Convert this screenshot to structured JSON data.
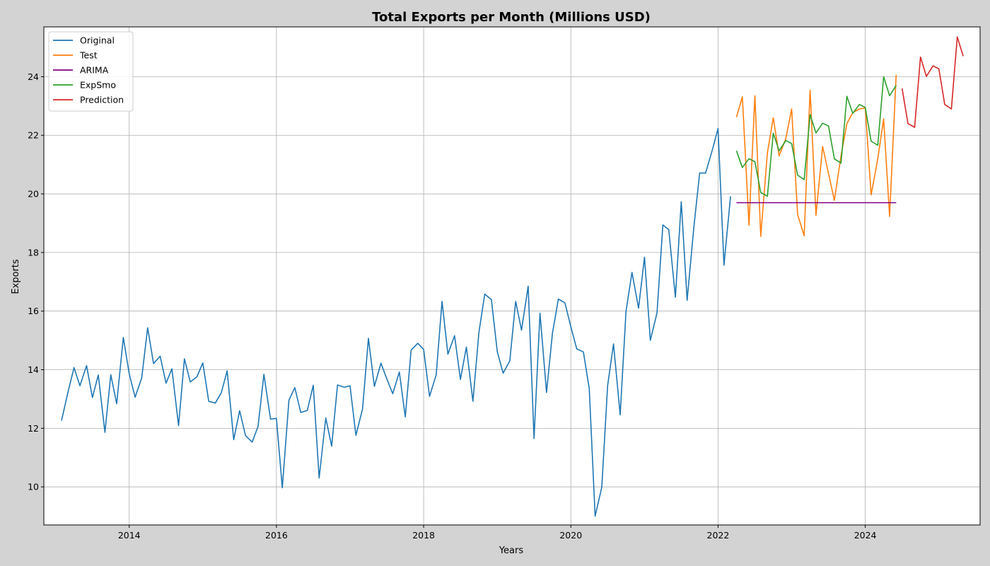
{
  "chart_data": {
    "type": "line",
    "title": "Total Exports per Month (Millions USD)",
    "xlabel": "Years",
    "ylabel": "Exports",
    "xlim": [
      2012.84,
      2025.56
    ],
    "ylim": [
      8.7,
      25.7
    ],
    "x_ticks": [
      2014,
      2016,
      2018,
      2020,
      2022,
      2024
    ],
    "x_tick_labels": [
      "2014",
      "2016",
      "2018",
      "2020",
      "2022",
      "2024"
    ],
    "y_ticks": [
      10,
      12,
      14,
      16,
      18,
      20,
      22,
      24
    ],
    "y_tick_labels": [
      "10",
      "12",
      "14",
      "16",
      "18",
      "20",
      "22",
      "24"
    ],
    "grid": true,
    "legend_position": "top-left",
    "series": [
      {
        "name": "Original",
        "color": "#1f77b4",
        "x": [
          2013.08,
          2013.17,
          2013.25,
          2013.33,
          2013.42,
          2013.5,
          2013.58,
          2013.67,
          2013.75,
          2013.83,
          2013.92,
          2014.0,
          2014.08,
          2014.17,
          2014.25,
          2014.33,
          2014.42,
          2014.5,
          2014.58,
          2014.67,
          2014.75,
          2014.83,
          2014.92,
          2015.0,
          2015.08,
          2015.17,
          2015.25,
          2015.33,
          2015.42,
          2015.5,
          2015.58,
          2015.67,
          2015.75,
          2015.83,
          2015.92,
          2016.0,
          2016.08,
          2016.17,
          2016.25,
          2016.33,
          2016.42,
          2016.5,
          2016.58,
          2016.67,
          2016.75,
          2016.83,
          2016.92,
          2017.0,
          2017.08,
          2017.17,
          2017.25,
          2017.33,
          2017.42,
          2017.5,
          2017.58,
          2017.67,
          2017.75,
          2017.83,
          2017.92,
          2018.0,
          2018.08,
          2018.17,
          2018.25,
          2018.33,
          2018.42,
          2018.5,
          2018.58,
          2018.67,
          2018.75,
          2018.83,
          2018.92,
          2019.0,
          2019.08,
          2019.17,
          2019.25,
          2019.33,
          2019.42,
          2019.5,
          2019.58,
          2019.67,
          2019.75,
          2019.83,
          2019.92,
          2020.0,
          2020.08,
          2020.17,
          2020.25,
          2020.33,
          2020.42,
          2020.5,
          2020.58,
          2020.67,
          2020.75,
          2020.83,
          2020.92,
          2021.0,
          2021.08,
          2021.17,
          2021.25,
          2021.33,
          2021.42,
          2021.5,
          2021.58,
          2021.67,
          2021.75,
          2021.83,
          2021.92,
          2022.0,
          2022.08,
          2022.17
        ],
        "y": [
          12.26,
          13.25,
          14.07,
          13.45,
          14.14,
          13.05,
          13.82,
          11.86,
          13.83,
          12.84,
          15.1,
          13.86,
          13.06,
          13.72,
          15.43,
          14.21,
          14.46,
          13.54,
          14.03,
          12.09,
          14.37,
          13.58,
          13.76,
          14.23,
          12.92,
          12.86,
          13.21,
          13.96,
          11.61,
          12.6,
          11.75,
          11.53,
          12.06,
          13.84,
          12.31,
          12.34,
          9.97,
          12.96,
          13.39,
          12.54,
          12.61,
          13.47,
          10.3,
          12.35,
          11.39,
          13.48,
          13.4,
          13.45,
          11.76,
          12.66,
          15.07,
          13.43,
          14.22,
          13.68,
          13.18,
          13.92,
          12.39,
          14.67,
          14.9,
          14.69,
          13.09,
          13.82,
          16.33,
          14.53,
          15.16,
          13.67,
          14.77,
          12.92,
          15.26,
          16.58,
          16.39,
          14.62,
          13.88,
          14.3,
          16.33,
          15.35,
          16.85,
          11.65,
          15.93,
          13.22,
          15.24,
          16.41,
          16.28,
          15.46,
          14.71,
          14.61,
          13.35,
          9.0,
          9.99,
          13.46,
          14.88,
          12.46,
          16.0,
          17.32,
          16.1,
          17.84,
          15.0,
          15.94,
          18.94,
          18.78,
          16.47,
          19.73,
          16.37,
          18.84,
          20.71,
          20.71,
          21.48,
          22.23,
          17.57,
          19.92
        ]
      },
      {
        "name": "Test",
        "color": "#ff7f0e",
        "x": [
          2022.25,
          2022.33,
          2022.42,
          2022.5,
          2022.58,
          2022.67,
          2022.75,
          2022.83,
          2022.92,
          2023.0,
          2023.08,
          2023.17,
          2023.25,
          2023.33,
          2023.42,
          2023.5,
          2023.58,
          2023.67,
          2023.75,
          2023.83,
          2023.92,
          2024.0,
          2024.08,
          2024.17,
          2024.25,
          2024.33,
          2024.42
        ],
        "y": [
          22.62,
          23.31,
          18.93,
          23.35,
          18.55,
          21.4,
          22.6,
          21.3,
          21.88,
          22.9,
          19.3,
          18.57,
          23.54,
          19.27,
          21.62,
          20.7,
          19.78,
          21.3,
          22.4,
          22.77,
          22.9,
          22.93,
          19.97,
          21.2,
          22.56,
          19.23,
          24.06
        ]
      },
      {
        "name": "ARIMA",
        "color": "#800080",
        "x": [
          2022.25,
          2024.42
        ],
        "y": [
          19.7,
          19.7
        ]
      },
      {
        "name": "ExpSmo",
        "color": "#2ca02c",
        "x": [
          2022.25,
          2022.33,
          2022.42,
          2022.5,
          2022.58,
          2022.67,
          2022.75,
          2022.83,
          2022.92,
          2023.0,
          2023.08,
          2023.17,
          2023.25,
          2023.33,
          2023.42,
          2023.5,
          2023.58,
          2023.67,
          2023.75,
          2023.83,
          2023.92,
          2024.0,
          2024.08,
          2024.17,
          2024.25,
          2024.33,
          2024.42
        ],
        "y": [
          21.47,
          20.9,
          21.2,
          21.1,
          20.05,
          19.92,
          22.07,
          21.47,
          21.82,
          21.72,
          20.64,
          20.49,
          22.7,
          22.08,
          22.41,
          22.32,
          21.2,
          21.05,
          23.33,
          22.75,
          23.05,
          22.95,
          21.8,
          21.66,
          24.0,
          23.35,
          23.7
        ]
      },
      {
        "name": "Prediction",
        "color": "#d62728",
        "x": [
          2024.5,
          2024.58,
          2024.67,
          2024.75,
          2024.83,
          2024.92,
          2025.0,
          2025.08,
          2025.17,
          2025.25,
          2025.33
        ],
        "y": [
          23.6,
          22.4,
          22.27,
          24.67,
          24.01,
          24.37,
          24.27,
          23.05,
          22.9,
          25.36,
          24.7
        ]
      }
    ]
  }
}
